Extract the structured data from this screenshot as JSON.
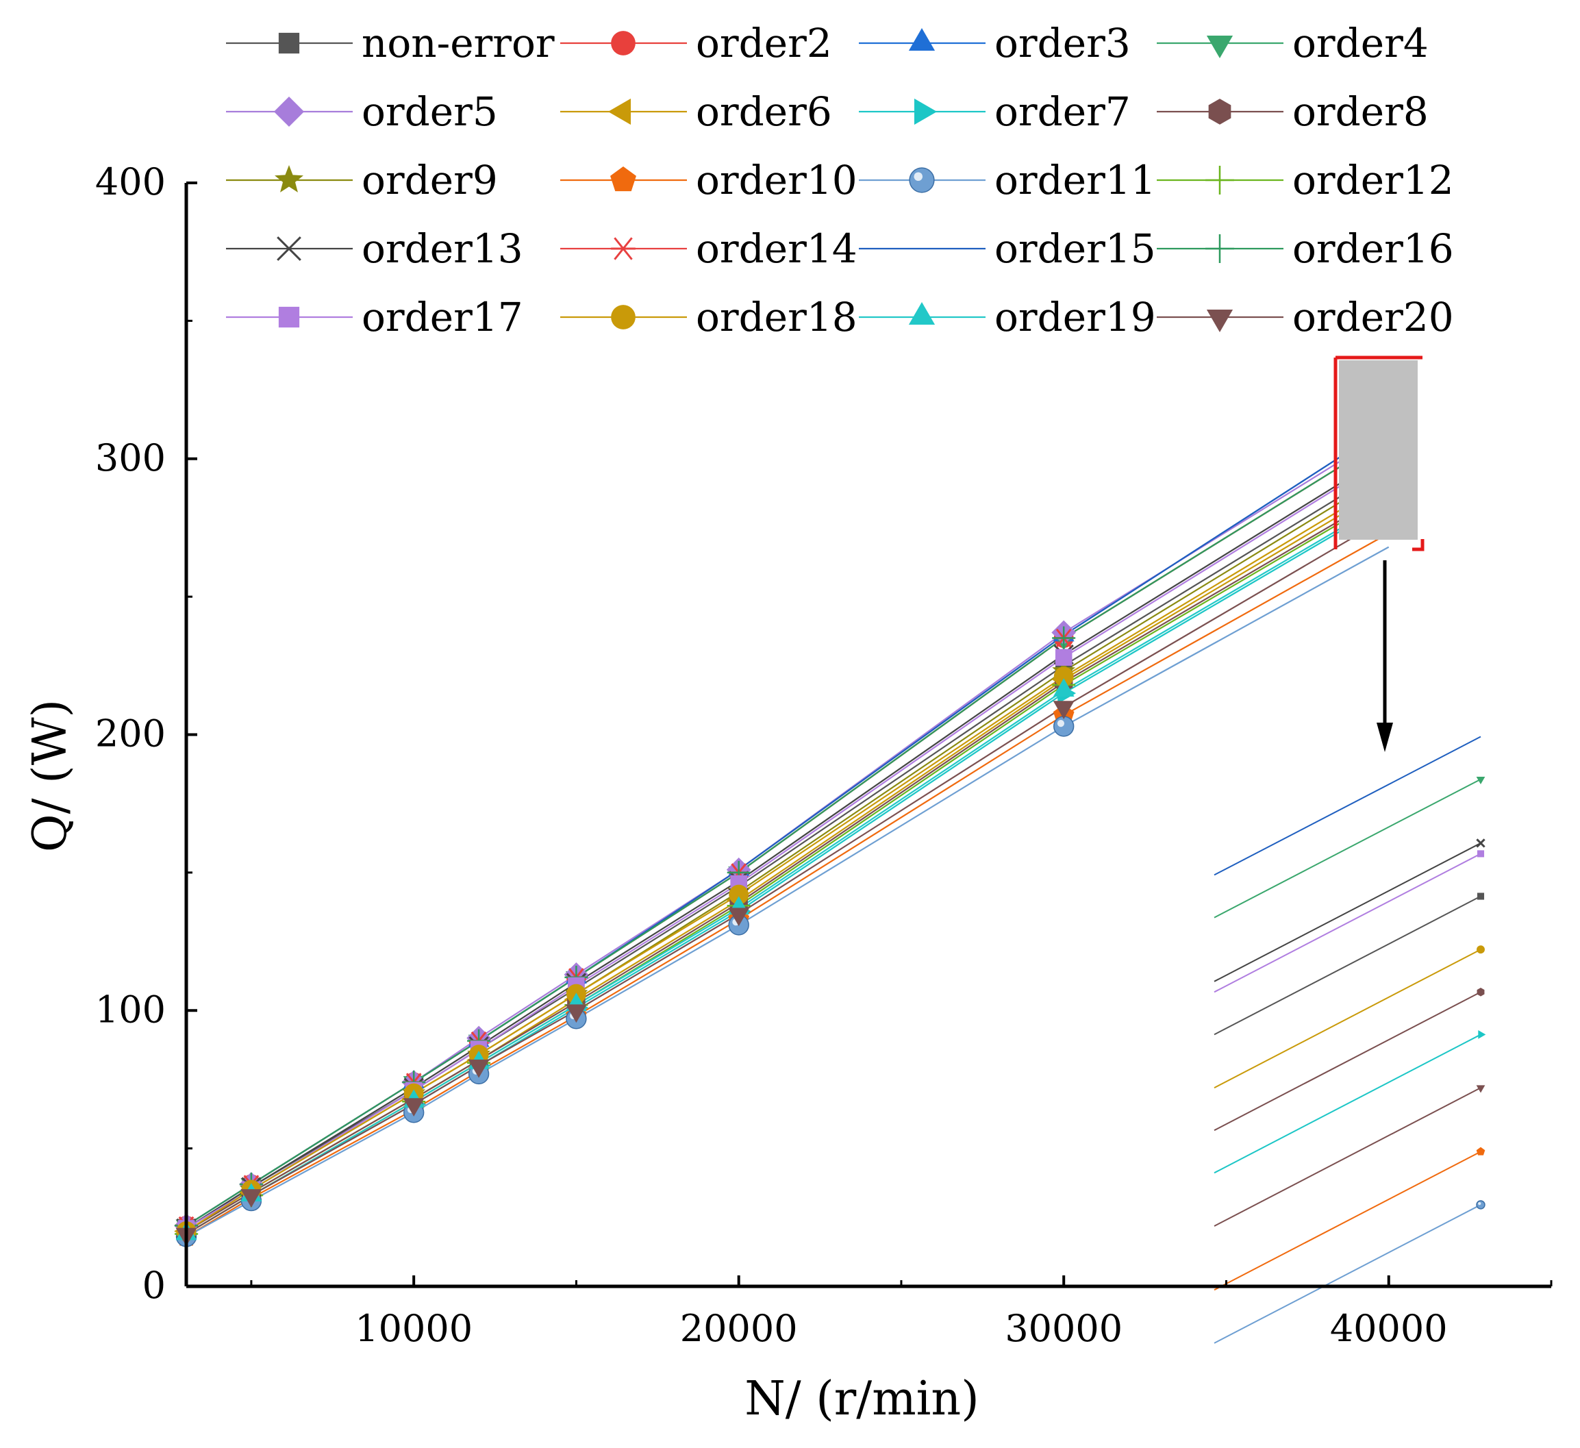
{
  "chart_data": {
    "type": "line",
    "title": "",
    "xlabel": "N/ (r/min)",
    "ylabel": "Q/ (W)",
    "xlim": [
      3000,
      45000
    ],
    "ylim": [
      0,
      400
    ],
    "x_ticks": [
      10000,
      20000,
      30000,
      40000
    ],
    "y_ticks": [
      0,
      100,
      200,
      300,
      400
    ],
    "x_tick_labels": [
      "10000",
      "20000",
      "30000",
      "40000"
    ],
    "y_tick_labels": [
      "0",
      "100",
      "200",
      "300",
      "400"
    ],
    "x": [
      3000,
      5000,
      10000,
      12000,
      15000,
      20000,
      30000,
      40000
    ],
    "legend_position": "top",
    "series": [
      {
        "name": "non-error",
        "marker": "square",
        "color": "#555555",
        "values": [
          21,
          36,
          71,
          86,
          108,
          145,
          225,
          297
        ]
      },
      {
        "name": "order2",
        "marker": "circle",
        "color": "#e8403c",
        "values": [
          22,
          37,
          74,
          89,
          112,
          150,
          235,
          308
        ]
      },
      {
        "name": "order3",
        "marker": "triangle-up",
        "color": "#1f6fd6",
        "values": [
          22,
          37,
          74,
          89,
          112,
          151,
          236,
          312
        ]
      },
      {
        "name": "order4",
        "marker": "triangle-down",
        "color": "#3aa76d",
        "values": [
          22,
          37,
          74,
          89,
          112,
          150,
          235,
          308
        ]
      },
      {
        "name": "order5",
        "marker": "diamond",
        "color": "#a77ddb",
        "values": [
          22,
          37,
          74,
          90,
          113,
          151,
          237,
          310
        ]
      },
      {
        "name": "order6",
        "marker": "triangle-left",
        "color": "#c99a09",
        "values": [
          20,
          34,
          68,
          82,
          104,
          140,
          220,
          290
        ]
      },
      {
        "name": "order7",
        "marker": "triangle-right",
        "color": "#1cc6c6",
        "values": [
          19,
          33,
          66,
          80,
          101,
          136,
          215,
          284
        ]
      },
      {
        "name": "order8",
        "marker": "hexagon",
        "color": "#7a4f4f",
        "values": [
          20,
          34,
          68,
          82,
          103,
          139,
          219,
          288
        ]
      },
      {
        "name": "order9",
        "marker": "star",
        "color": "#8a8a10",
        "values": [
          21,
          35,
          70,
          84,
          106,
          143,
          223,
          295
        ]
      },
      {
        "name": "order10",
        "marker": "pentagon",
        "color": "#f06a0e",
        "values": [
          18,
          32,
          64,
          78,
          98,
          133,
          207,
          273
        ]
      },
      {
        "name": "order11",
        "marker": "sphere",
        "color": "#6e9fd2",
        "values": [
          18,
          31,
          63,
          77,
          97,
          131,
          203,
          268
        ]
      },
      {
        "name": "order12",
        "marker": "plus",
        "color": "#6bb51e",
        "values": [
          19,
          33,
          67,
          81,
          102,
          138,
          218,
          287
        ]
      },
      {
        "name": "order13",
        "marker": "x",
        "color": "#444444",
        "values": [
          21,
          36,
          72,
          87,
          110,
          147,
          229,
          302
        ]
      },
      {
        "name": "order14",
        "marker": "asterisk",
        "color": "#e84040",
        "values": [
          22,
          37,
          74,
          89,
          112,
          150,
          235,
          308
        ]
      },
      {
        "name": "order15",
        "marker": "none",
        "color": "#1f5fbf",
        "values": [
          22,
          37,
          74,
          89,
          112,
          151,
          236,
          312
        ]
      },
      {
        "name": "order16",
        "marker": "plus",
        "color": "#2e9a5e",
        "values": [
          22,
          37,
          74,
          89,
          112,
          150,
          235,
          308
        ]
      },
      {
        "name": "order17",
        "marker": "square",
        "color": "#b07ee0",
        "values": [
          21,
          35,
          71,
          86,
          109,
          146,
          228,
          301
        ]
      },
      {
        "name": "order18",
        "marker": "circle",
        "color": "#c99a09",
        "values": [
          20,
          35,
          70,
          84,
          106,
          142,
          221,
          292
        ]
      },
      {
        "name": "order19",
        "marker": "triangle-up",
        "color": "#22c8c8",
        "values": [
          19,
          33,
          67,
          81,
          102,
          137,
          216,
          285
        ]
      },
      {
        "name": "order20",
        "marker": "triangle-down",
        "color": "#7b5050",
        "values": [
          19,
          33,
          66,
          80,
          100,
          135,
          210,
          279
        ]
      }
    ],
    "inset_zoom": {
      "annotation": "zoomed view of curves near 40000 r/min",
      "series_order_top_to_bottom": [
        "order15",
        "order4",
        "order13",
        "order17",
        "non-error",
        "order18",
        "order8",
        "order7",
        "order20",
        "order10",
        "order11"
      ]
    }
  }
}
